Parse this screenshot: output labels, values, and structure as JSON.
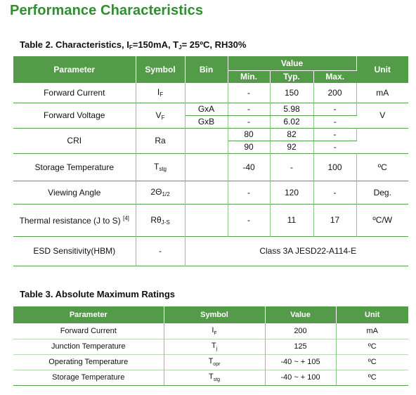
{
  "title": "Performance Characteristics",
  "table2": {
    "caption_pre": "Table 2. Characteristics,  I",
    "caption_if_sub": "F",
    "caption_mid": "=150mA, T",
    "caption_tj_sub": "J",
    "caption_post": "= 25ºC, RH30%",
    "headers": {
      "parameter": "Parameter",
      "symbol": "Symbol",
      "bin": "Bin",
      "value": "Value",
      "min": "Min.",
      "typ": "Typ.",
      "max": "Max.",
      "unit": "Unit"
    },
    "rows": {
      "forward_current": {
        "param": "Forward Current",
        "sym": "I",
        "sym_sub": "F",
        "min": "-",
        "typ": "150",
        "max": "200",
        "unit": "mA"
      },
      "forward_voltage": {
        "param": "Forward Voltage",
        "sym": "V",
        "sym_sub": "F",
        "unit": "V",
        "bins": [
          {
            "bin": "GxA",
            "min": "-",
            "typ": "5.98",
            "max": "-"
          },
          {
            "bin": "GxB",
            "min": "-",
            "typ": "6.02",
            "max": "-"
          }
        ]
      },
      "cri": {
        "param": "CRI",
        "sym": "Ra",
        "sub_rows": [
          {
            "min": "80",
            "typ": "82",
            "max": "-"
          },
          {
            "min": "90",
            "typ": "92",
            "max": "-"
          }
        ]
      },
      "storage_temp": {
        "param": "Storage  Temperature",
        "sym": "T",
        "sym_sub": "stg",
        "min": "-40",
        "typ": "-",
        "max": "100",
        "unit": "ºC"
      },
      "viewing_angle": {
        "param": "Viewing Angle",
        "sym": "2Θ",
        "sym_sub": "1/2",
        "min": "-",
        "typ": "120",
        "max": "-",
        "unit": "Deg."
      },
      "thermal_resistance": {
        "param": "Thermal resistance (J to S)",
        "param_sup": "[4]",
        "sym": "Rθ",
        "sym_sub": "J-S",
        "min": "-",
        "typ": "11",
        "max": "17",
        "unit": "ºC/W"
      },
      "esd": {
        "param": "ESD Sensitivity(HBM)",
        "sym": "-",
        "value": "Class 3A JESD22-A114-E"
      }
    }
  },
  "table3": {
    "caption": "Table 3. Absolute Maximum Ratings",
    "headers": {
      "parameter": "Parameter",
      "symbol": "Symbol",
      "value": "Value",
      "unit": "Unit"
    },
    "rows": [
      {
        "param": "Forward Current",
        "sym": "I",
        "sym_sub": "F",
        "value": "200",
        "unit": "mA"
      },
      {
        "param": "Junction Temperature",
        "sym": "T",
        "sym_sub": "j",
        "value": "125",
        "unit": "ºC"
      },
      {
        "param": "Operating Temperature",
        "sym": "T",
        "sym_sub": "opr",
        "value": "-40 ~ + 105",
        "unit": "ºC"
      },
      {
        "param": "Storage  Temperature",
        "sym": "T",
        "sym_sub": "stg",
        "value": "-40 ~ + 100",
        "unit": "ºC"
      }
    ]
  }
}
